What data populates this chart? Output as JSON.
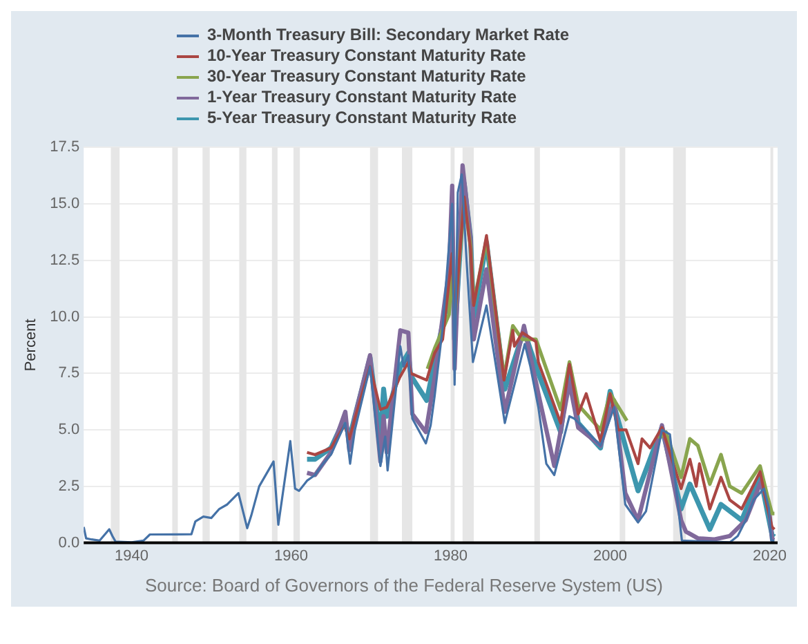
{
  "chart_data": {
    "type": "line",
    "ylabel": "Percent",
    "annotations": [
      "Source: Board of Governors of the Federal Reserve System (US)"
    ],
    "xlim": [
      1934,
      2021
    ],
    "xticks": [
      1940,
      1960,
      1980,
      2000,
      2020
    ],
    "ylim": [
      0,
      17.5
    ],
    "yticks": [
      {
        "value": 0,
        "label": "0.0"
      },
      2.5,
      {
        "value": 5,
        "label": "5.0"
      },
      7.5,
      {
        "value": 10,
        "label": "10.0"
      },
      12.5,
      {
        "value": 15,
        "label": "15.0"
      },
      17.5
    ],
    "grid": "y",
    "legend": "top",
    "marker": "none",
    "line_style": "solid",
    "bands": [
      {
        "axis": "x",
        "from": 1937.4,
        "to": 1938.5,
        "color": "#e6e6e6"
      },
      {
        "axis": "x",
        "from": 1945.1,
        "to": 1945.8,
        "color": "#e6e6e6"
      },
      {
        "axis": "x",
        "from": 1948.9,
        "to": 1949.8,
        "color": "#e6e6e6"
      },
      {
        "axis": "x",
        "from": 1953.5,
        "to": 1954.4,
        "color": "#e6e6e6"
      },
      {
        "axis": "x",
        "from": 1957.6,
        "to": 1958.3,
        "color": "#e6e6e6"
      },
      {
        "axis": "x",
        "from": 1960.3,
        "to": 1961.1,
        "color": "#e6e6e6"
      },
      {
        "axis": "x",
        "from": 1969.9,
        "to": 1970.9,
        "color": "#e6e6e6"
      },
      {
        "axis": "x",
        "from": 1973.9,
        "to": 1975.2,
        "color": "#e6e6e6"
      },
      {
        "axis": "x",
        "from": 1980.0,
        "to": 1980.5,
        "color": "#e6e6e6"
      },
      {
        "axis": "x",
        "from": 1981.5,
        "to": 1982.9,
        "color": "#e6e6e6"
      },
      {
        "axis": "x",
        "from": 1990.5,
        "to": 1991.2,
        "color": "#e6e6e6"
      },
      {
        "axis": "x",
        "from": 2001.2,
        "to": 2001.9,
        "color": "#e6e6e6"
      },
      {
        "axis": "x",
        "from": 2007.9,
        "to": 2009.5,
        "color": "#e6e6e6"
      },
      {
        "axis": "x",
        "from": 2020.1,
        "to": 2020.4,
        "color": "#e6e6e6"
      }
    ],
    "series": [
      {
        "name": "3-Month Treasury Bill: Secondary Market Rate",
        "color": "#4572a7",
        "x": [
          1934.0,
          1934.3,
          1935,
          1936,
          1937.2,
          1937.6,
          1938,
          1940,
          1941.5,
          1942.3,
          1947.5,
          1948,
          1949,
          1950,
          1951,
          1952,
          1953.4,
          1954.5,
          1955,
          1956,
          1957.8,
          1958.4,
          1959.9,
          1960.5,
          1961,
          1962,
          1963,
          1964,
          1965,
          1966.8,
          1967.4,
          1968,
          1969.9,
          1971.2,
          1971.8,
          1972.1,
          1973.7,
          1974.1,
          1974.7,
          1975.2,
          1976.9,
          1977.5,
          1978,
          1979,
          1980.2,
          1980.5,
          1980.9,
          1981.4,
          1982,
          1982.8,
          1984.5,
          1986.8,
          1987,
          1989.3,
          1990,
          1991,
          1992,
          1993,
          1994.9,
          1995.5,
          1998.8,
          2000.5,
          2001.9,
          2003.5,
          2004.5,
          2006.5,
          2007.5,
          2008.5,
          2009,
          2015,
          2016,
          2017,
          2018,
          2019.3,
          2019.9,
          2020.2,
          2020.6
        ],
        "values": [
          0.7,
          0.2,
          0.15,
          0.1,
          0.6,
          0.3,
          0.05,
          0.02,
          0.1,
          0.37,
          0.38,
          0.95,
          1.16,
          1.1,
          1.5,
          1.7,
          2.2,
          0.65,
          1.2,
          2.5,
          3.6,
          0.8,
          4.5,
          2.4,
          2.3,
          2.75,
          3.0,
          3.5,
          3.9,
          5.3,
          3.5,
          5.0,
          7.8,
          3.4,
          4.7,
          3.2,
          8.7,
          7.8,
          8.3,
          5.5,
          4.4,
          5.2,
          6.5,
          9.5,
          15.0,
          7.0,
          15.5,
          16.3,
          12.5,
          8.0,
          10.5,
          5.3,
          5.6,
          8.8,
          7.8,
          6.0,
          3.5,
          3.0,
          5.6,
          5.5,
          4.3,
          6.0,
          1.7,
          0.9,
          1.4,
          5.0,
          4.8,
          1.7,
          0.1,
          0.02,
          0.3,
          1.0,
          1.9,
          2.4,
          1.55,
          0.1,
          0.1
        ]
      },
      {
        "name": "10-Year Treasury Constant Maturity Rate",
        "color": "#aa4643",
        "x": [
          1962,
          1963,
          1965,
          1966.7,
          1967.3,
          1968,
          1969.9,
          1971.2,
          1972,
          1973.6,
          1974.7,
          1975,
          1977,
          1978,
          1979,
          1980.2,
          1980.5,
          1981.7,
          1982.5,
          1982.9,
          1984.5,
          1986.7,
          1987.8,
          1988,
          1989,
          1990.7,
          1991,
          1993.8,
          1994.9,
          1996,
          1997,
          1998.8,
          2000,
          2001,
          2002,
          2003.5,
          2004,
          2005,
          2006.5,
          2008.9,
          2010,
          2010.8,
          2011.2,
          2012.5,
          2013.9,
          2015,
          2016.5,
          2018.8,
          2019.7,
          2020.3,
          2020.6
        ],
        "values": [
          4.0,
          3.9,
          4.2,
          5.2,
          4.6,
          5.5,
          7.8,
          5.9,
          6.0,
          7.3,
          8.0,
          7.5,
          7.2,
          8.4,
          9.0,
          12.8,
          9.8,
          15.3,
          13.0,
          10.5,
          13.6,
          7.2,
          9.4,
          8.7,
          9.3,
          8.9,
          8.0,
          5.3,
          7.9,
          5.7,
          6.6,
          4.5,
          6.6,
          5.0,
          5.0,
          3.5,
          4.6,
          4.2,
          5.1,
          2.4,
          3.7,
          2.5,
          3.5,
          1.5,
          2.9,
          1.9,
          1.5,
          3.15,
          1.6,
          0.7,
          0.6
        ]
      },
      {
        "name": "30-Year Treasury Constant Maturity Rate",
        "color": "#89a54e",
        "x": [
          1977.1,
          1978,
          1979.8,
          1980.2,
          1980.5,
          1981.7,
          1982.5,
          1982.9,
          1984.5,
          1986.7,
          1987.8,
          1989,
          1990.7,
          1993.8,
          1994.9,
          1996,
          1998.8,
          2000,
          2002.1,
          2004,
          2006.1,
          2007,
          2008.9,
          2010,
          2011,
          2012.5,
          2013.9,
          2015,
          2016.5,
          2018.8,
          2019.7,
          2020.3,
          2020.6
        ],
        "values": [
          7.7,
          8.6,
          10.1,
          12.3,
          9.9,
          15.2,
          13.1,
          10.6,
          13.4,
          7.3,
          9.6,
          9.0,
          9.0,
          5.9,
          8.0,
          6.1,
          5.0,
          6.6,
          5.4,
          null,
          4.6,
          4.9,
          2.9,
          4.6,
          4.3,
          2.6,
          3.9,
          2.5,
          2.2,
          3.4,
          2.1,
          1.3,
          1.3
        ]
      },
      {
        "name": "1-Year Treasury Constant Maturity Rate",
        "color": "#80699b",
        "x": [
          1962,
          1963,
          1965,
          1966.8,
          1967.3,
          1968,
          1969.9,
          1971.2,
          1971.6,
          1972,
          1973.7,
          1974.7,
          1975.2,
          1976.9,
          1978,
          1979.8,
          1980.2,
          1980.5,
          1981.5,
          1982.5,
          1982.9,
          1984.5,
          1986.8,
          1989.2,
          1991,
          1993,
          1994.9,
          1996,
          1998.8,
          2000.5,
          2001.9,
          2003.5,
          2006.5,
          2008.9,
          2009.5,
          2011,
          2013,
          2015,
          2017,
          2018.9,
          2019.9,
          2020.3,
          2020.6
        ],
        "values": [
          3.1,
          3.0,
          4.0,
          5.8,
          4.1,
          5.6,
          8.3,
          3.6,
          5.6,
          4.0,
          9.4,
          9.3,
          5.7,
          4.9,
          7.3,
          12.1,
          15.8,
          7.7,
          16.7,
          13.5,
          9.0,
          12.1,
          5.8,
          9.6,
          6.6,
          3.4,
          7.1,
          5.1,
          4.3,
          6.3,
          2.2,
          1.0,
          5.2,
          1.0,
          0.5,
          0.2,
          0.15,
          0.3,
          1.0,
          2.7,
          1.6,
          0.16,
          0.13
        ]
      },
      {
        "name": "5-Year Treasury Constant Maturity Rate",
        "color": "#3d96ae",
        "x": [
          1962,
          1963,
          1965,
          1966.7,
          1967.3,
          1968,
          1969.9,
          1971.2,
          1971.6,
          1972,
          1973.7,
          1974.7,
          1975,
          1977,
          1978,
          1979.8,
          1980.2,
          1980.5,
          1981.7,
          1982.5,
          1982.9,
          1984.5,
          1986.8,
          1989.2,
          1991,
          1993.8,
          1994.9,
          1996,
          1998.8,
          2000,
          2001.9,
          2003.5,
          2006.5,
          2008.9,
          2010,
          2012.5,
          2013.9,
          2016.5,
          2018.8,
          2019.7,
          2020.3,
          2020.6
        ],
        "values": [
          3.7,
          3.7,
          4.2,
          5.5,
          4.6,
          5.6,
          8.2,
          4.6,
          6.8,
          5.6,
          7.8,
          8.4,
          7.4,
          6.3,
          8.0,
          11.0,
          13.5,
          9.0,
          15.9,
          13.5,
          10.0,
          13.3,
          6.8,
          9.4,
          7.5,
          4.9,
          7.8,
          5.3,
          4.2,
          6.7,
          4.3,
          2.3,
          5.1,
          1.5,
          2.6,
          0.6,
          1.7,
          1.0,
          3.0,
          1.4,
          0.35,
          0.27
        ]
      }
    ]
  }
}
